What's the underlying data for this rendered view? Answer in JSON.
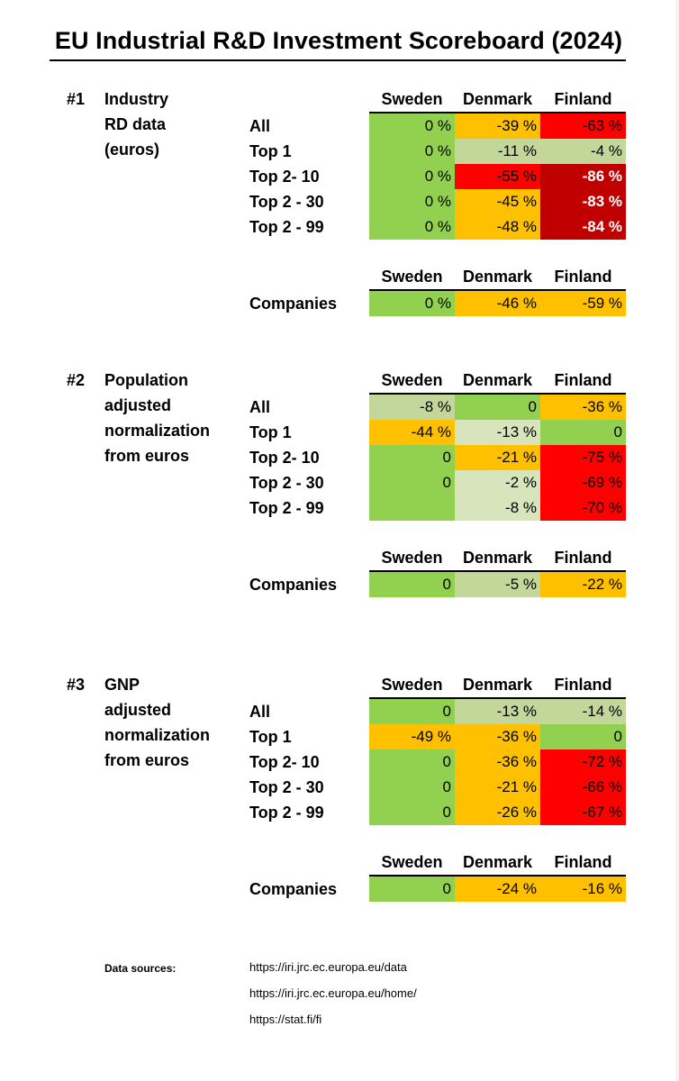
{
  "title": "EU Industrial R&D Investment Scoreboard (2024)",
  "colors": {
    "green": "#92d050",
    "light_green": "#c4d79b",
    "pale_green": "#d8e4bc",
    "orange": "#ffc000",
    "red": "#ff0000",
    "dark_red": "#c00000"
  },
  "sections": [
    {
      "number": "#1",
      "label_lines": [
        "Industry",
        "RD data",
        "(euros)"
      ],
      "headers": [
        "Sweden",
        "Denmark",
        "Finland"
      ],
      "rows": [
        {
          "label": "All",
          "cells": [
            {
              "text": "0 %",
              "color": "#92d050"
            },
            {
              "text": "-39 %",
              "color": "#ffc000"
            },
            {
              "text": "-63 %",
              "color": "#ff0000"
            }
          ]
        },
        {
          "label": "Top 1",
          "cells": [
            {
              "text": "0 %",
              "color": "#92d050"
            },
            {
              "text": "-11 %",
              "color": "#c4d79b"
            },
            {
              "text": "-4 %",
              "color": "#c4d79b"
            }
          ]
        },
        {
          "label": "Top 2- 10",
          "cells": [
            {
              "text": "0 %",
              "color": "#92d050"
            },
            {
              "text": "-55 %",
              "color": "#ff0000"
            },
            {
              "text": "-86 %",
              "color": "#c00000",
              "white": true
            }
          ]
        },
        {
          "label": "Top 2 - 30",
          "cells": [
            {
              "text": "0 %",
              "color": "#92d050"
            },
            {
              "text": "-45 %",
              "color": "#ffc000"
            },
            {
              "text": "-83 %",
              "color": "#c00000",
              "white": true
            }
          ]
        },
        {
          "label": "Top 2 - 99",
          "cells": [
            {
              "text": "0 %",
              "color": "#92d050"
            },
            {
              "text": "-48 %",
              "color": "#ffc000"
            },
            {
              "text": "-84 %",
              "color": "#c00000",
              "white": true
            }
          ]
        }
      ],
      "companies": {
        "headers": [
          "Sweden",
          "Denmark",
          "Finland"
        ],
        "label": "Companies",
        "cells": [
          {
            "text": "0 %",
            "color": "#92d050"
          },
          {
            "text": "-46 %",
            "color": "#ffc000"
          },
          {
            "text": "-59 %",
            "color": "#ffc000"
          }
        ]
      }
    },
    {
      "number": "#2",
      "label_lines": [
        "Population",
        "adjusted",
        "normalization",
        "from euros"
      ],
      "headers": [
        "Sweden",
        "Denmark",
        "Finland"
      ],
      "rows": [
        {
          "label": "All",
          "cells": [
            {
              "text": "-8 %",
              "color": "#c4d79b"
            },
            {
              "text": "0",
              "color": "#92d050"
            },
            {
              "text": "-36 %",
              "color": "#ffc000"
            }
          ]
        },
        {
          "label": "Top 1",
          "cells": [
            {
              "text": "-44 %",
              "color": "#ffc000"
            },
            {
              "text": "-13 %",
              "color": "#d8e4bc"
            },
            {
              "text": "0",
              "color": "#92d050"
            }
          ]
        },
        {
          "label": "Top 2- 10",
          "cells": [
            {
              "text": "0",
              "color": "#92d050"
            },
            {
              "text": "-21 %",
              "color": "#ffc000"
            },
            {
              "text": "-75 %",
              "color": "#ff0000"
            }
          ]
        },
        {
          "label": "Top 2 - 30",
          "cells": [
            {
              "text": "0",
              "color": "#92d050"
            },
            {
              "text": "-2 %",
              "color": "#d8e4bc"
            },
            {
              "text": "-69 %",
              "color": "#ff0000"
            }
          ]
        },
        {
          "label": "Top 2 - 99",
          "cells": [
            {
              "text": "",
              "color": "#92d050"
            },
            {
              "text": "-8 %",
              "color": "#d8e4bc"
            },
            {
              "text": "-70 %",
              "color": "#ff0000"
            }
          ]
        }
      ],
      "companies": {
        "headers": [
          "Sweden",
          "Denmark",
          "Finland"
        ],
        "label": "Companies",
        "cells": [
          {
            "text": "0",
            "color": "#92d050"
          },
          {
            "text": "-5 %",
            "color": "#c4d79b"
          },
          {
            "text": "-22 %",
            "color": "#ffc000"
          }
        ]
      }
    },
    {
      "number": "#3",
      "label_lines": [
        "GNP",
        "adjusted",
        "normalization",
        "from euros"
      ],
      "headers": [
        "Sweden",
        "Denmark",
        "Finland"
      ],
      "rows": [
        {
          "label": "All",
          "cells": [
            {
              "text": "0",
              "color": "#92d050"
            },
            {
              "text": "-13 %",
              "color": "#c4d79b"
            },
            {
              "text": "-14 %",
              "color": "#c4d79b"
            }
          ]
        },
        {
          "label": "Top 1",
          "cells": [
            {
              "text": "-49 %",
              "color": "#ffc000"
            },
            {
              "text": "-36 %",
              "color": "#ffc000"
            },
            {
              "text": "0",
              "color": "#92d050"
            }
          ]
        },
        {
          "label": "Top 2- 10",
          "cells": [
            {
              "text": "0",
              "color": "#92d050"
            },
            {
              "text": "-36 %",
              "color": "#ffc000"
            },
            {
              "text": "-72 %",
              "color": "#ff0000"
            }
          ]
        },
        {
          "label": "Top 2 - 30",
          "cells": [
            {
              "text": "0",
              "color": "#92d050"
            },
            {
              "text": "-21 %",
              "color": "#ffc000"
            },
            {
              "text": "-66 %",
              "color": "#ff0000"
            }
          ]
        },
        {
          "label": "Top 2 - 99",
          "cells": [
            {
              "text": "0",
              "color": "#92d050"
            },
            {
              "text": "-26 %",
              "color": "#ffc000"
            },
            {
              "text": "-67 %",
              "color": "#ff0000"
            }
          ]
        }
      ],
      "companies": {
        "headers": [
          "Sweden",
          "Denmark",
          "Finland"
        ],
        "label": "Companies",
        "cells": [
          {
            "text": "0",
            "color": "#92d050"
          },
          {
            "text": "-24 %",
            "color": "#ffc000"
          },
          {
            "text": "-16 %",
            "color": "#ffc000"
          }
        ]
      }
    }
  ],
  "sources": {
    "label": "Data sources:",
    "links": [
      "https://iri.jrc.ec.europa.eu/data",
      "https://iri.jrc.ec.europa.eu/home/",
      "https://stat.fi/fi"
    ]
  }
}
